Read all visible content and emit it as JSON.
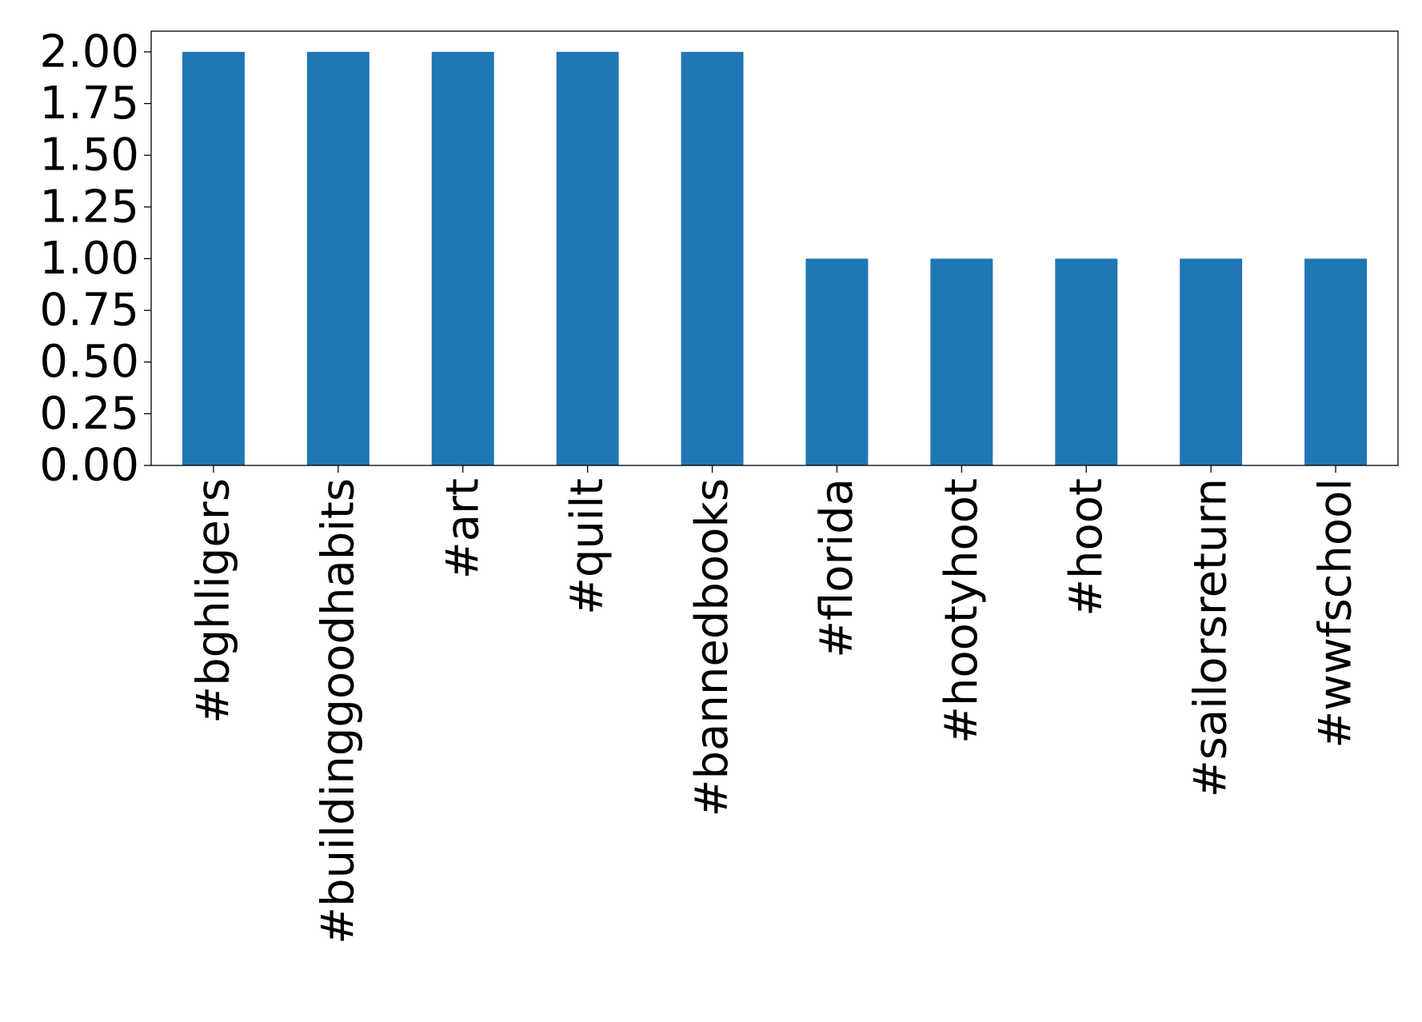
{
  "chart_data": {
    "type": "bar",
    "categories": [
      "#bghligers",
      "#buildinggoodhabits",
      "#art",
      "#quilt",
      "#bannedbooks",
      "#florida",
      "#hootyhoot",
      "#hoot",
      "#sailorsreturn",
      "#wwfschool"
    ],
    "values": [
      2,
      2,
      2,
      2,
      2,
      1,
      1,
      1,
      1,
      1
    ],
    "title": "",
    "xlabel": "",
    "ylabel": "",
    "ylim": [
      0,
      2.1
    ],
    "yticks": [
      0,
      0.25,
      0.5,
      0.75,
      1.0,
      1.25,
      1.5,
      1.75,
      2.0
    ],
    "ytick_labels": [
      "0.00",
      "0.25",
      "0.50",
      "0.75",
      "1.00",
      "1.25",
      "1.50",
      "1.75",
      "2.00"
    ],
    "bar_color": "#1f77b4",
    "grid": false,
    "legend": "none"
  }
}
